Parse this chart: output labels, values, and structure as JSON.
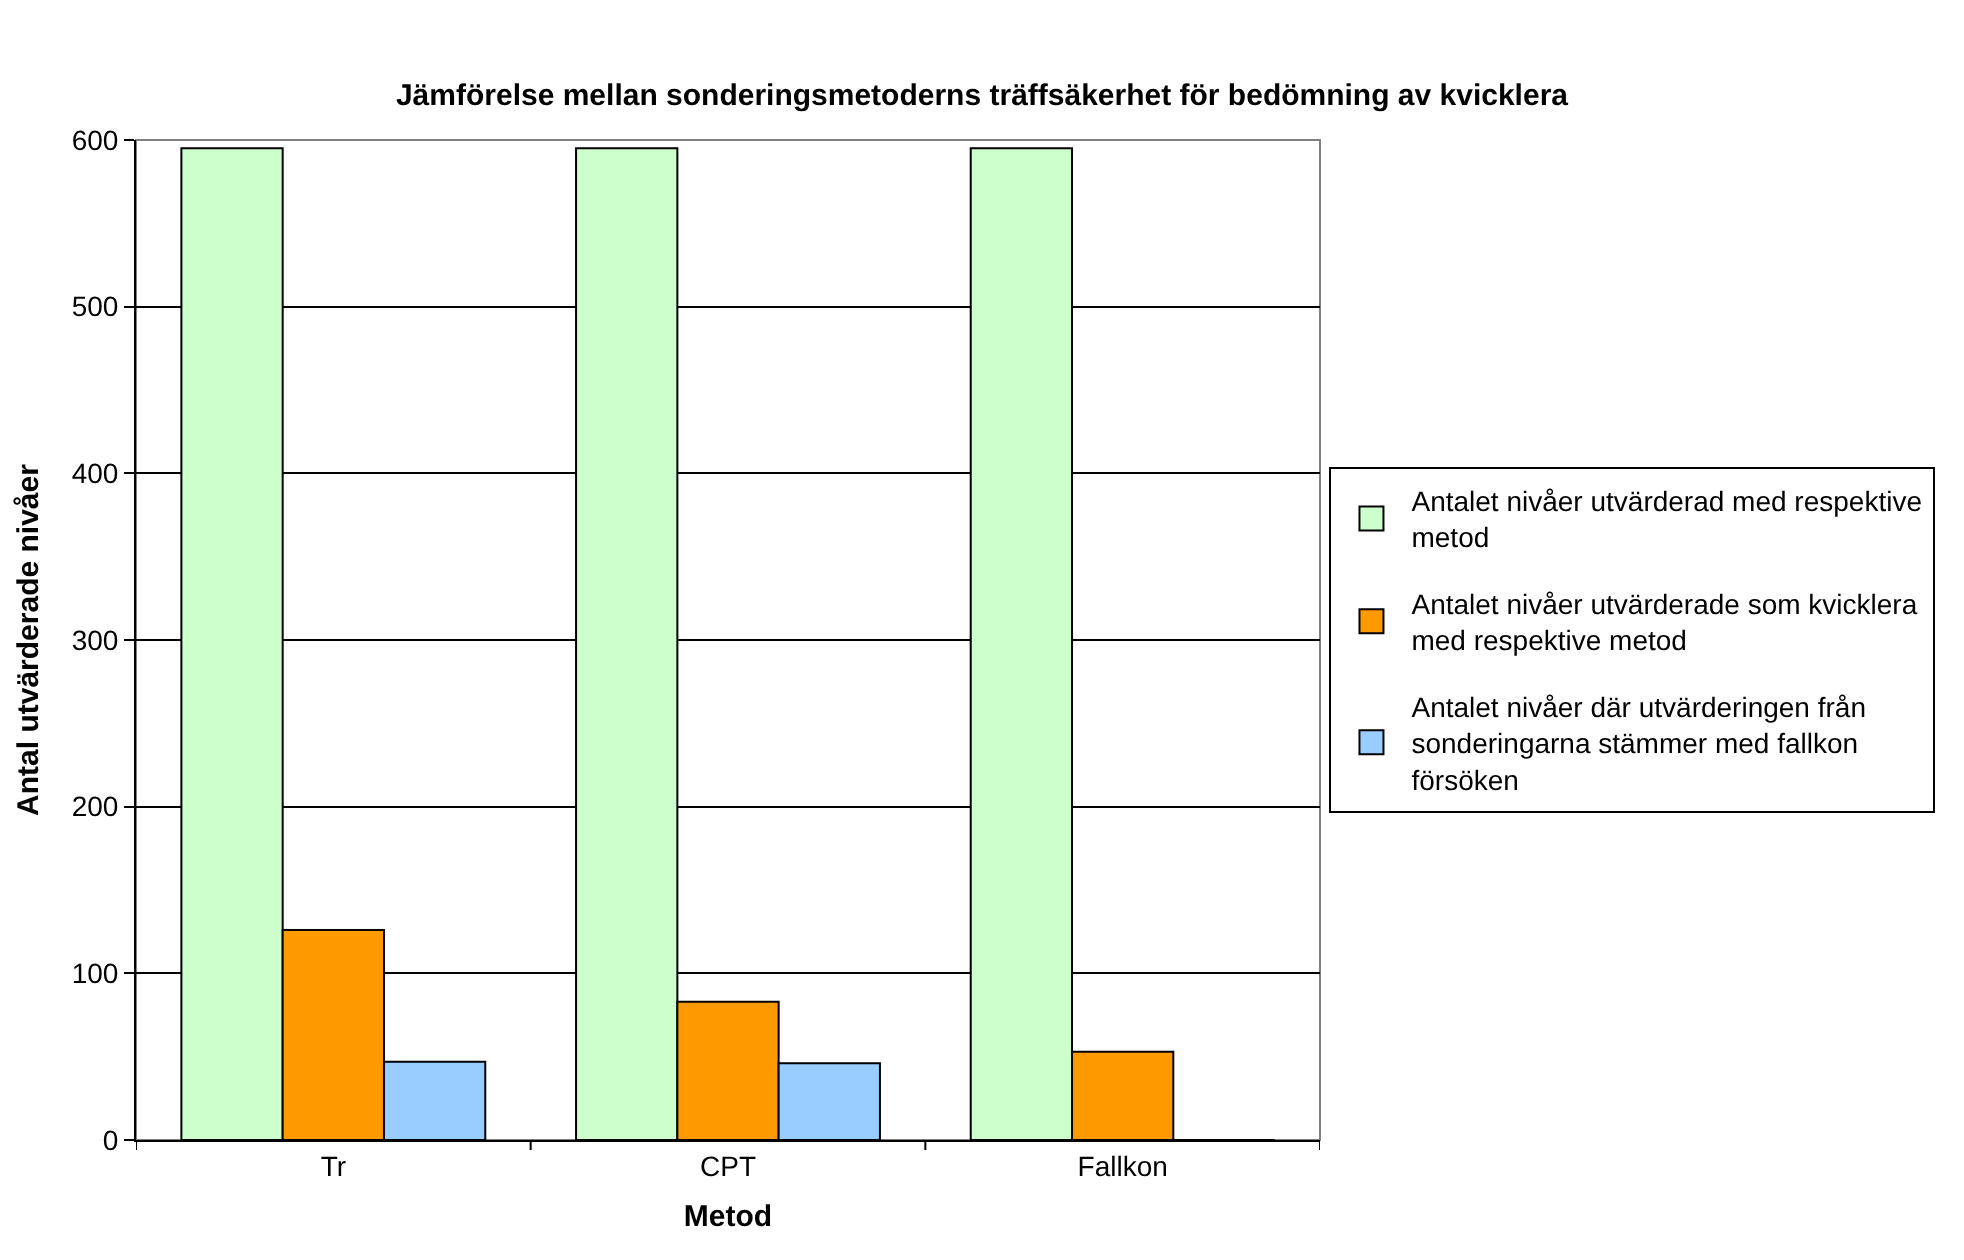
{
  "chart_data": {
    "type": "bar",
    "title": "Jämförelse mellan sonderingsmetoderns träffsäkerhet för bedömning av kvicklera",
    "xlabel": "Metod",
    "ylabel": "Antal utvärderade nivåer",
    "categories": [
      "Tr",
      "CPT",
      "Fallkon"
    ],
    "series": [
      {
        "name": "Antalet nivåer utvärderad med respektive metod",
        "color": "#ccffcc",
        "values": [
          595,
          595,
          595
        ]
      },
      {
        "name": "Antalet nivåer utvärderade som kvicklera med respektive metod",
        "color": "#ff9900",
        "values": [
          126,
          83,
          53
        ]
      },
      {
        "name": "Antalet nivåer där utvärderingen från sonderingarna stämmer med fallkon försöken",
        "color": "#99ccff",
        "values": [
          47,
          46,
          0
        ]
      }
    ],
    "ylim": [
      0,
      600
    ],
    "yticks": [
      0,
      100,
      200,
      300,
      400,
      500,
      600
    ],
    "grid": "y",
    "legend": "right"
  }
}
